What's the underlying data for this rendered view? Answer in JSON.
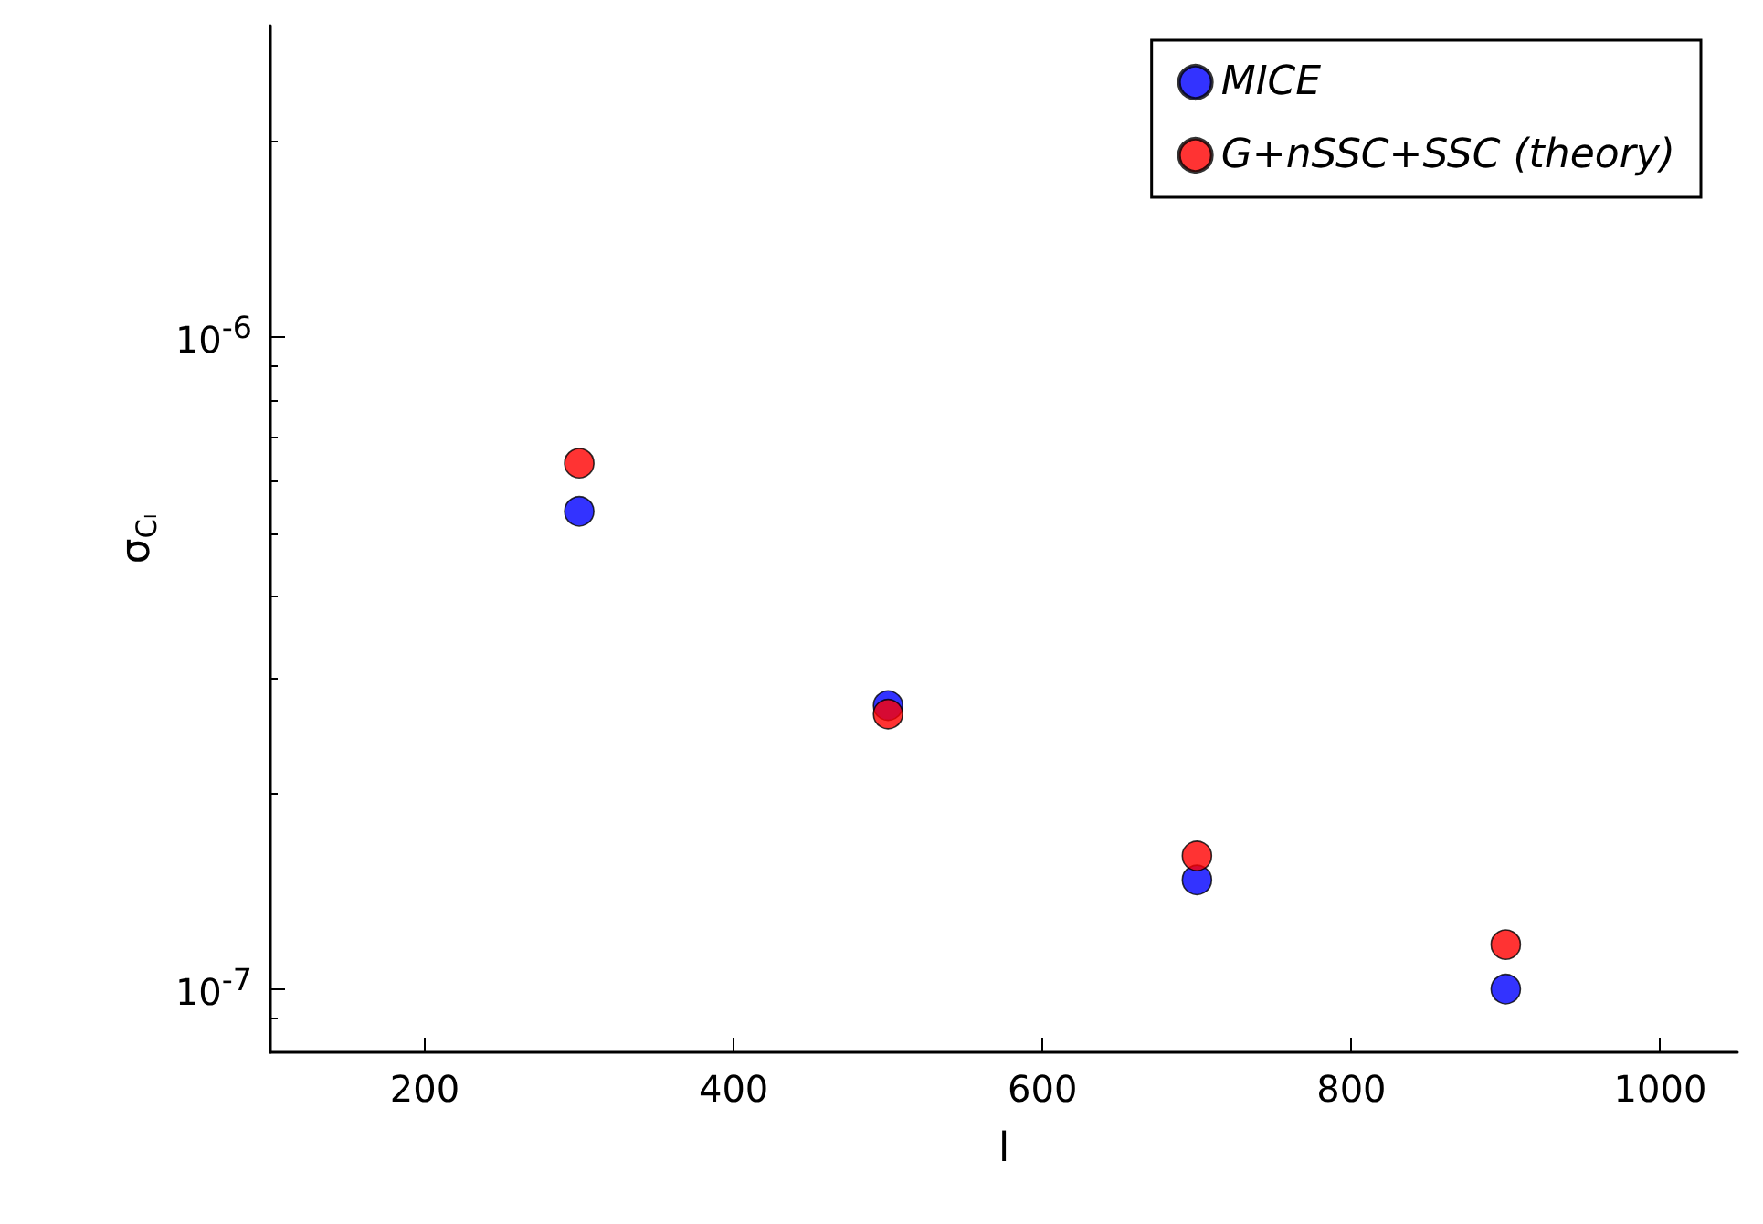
{
  "chart_data": {
    "type": "scatter",
    "xlabel": "l",
    "ylabel": "σ$_{Cₗ}$",
    "x": [
      300,
      500,
      700,
      900
    ],
    "series": [
      {
        "name": "MICE",
        "color": "#0000ff",
        "values": [
          5.4e-07,
          2.72e-07,
          1.47e-07,
          1e-07
        ]
      },
      {
        "name": "G+nSSC+SSC (theory)",
        "color": "#ff0000",
        "values": [
          6.4e-07,
          2.64e-07,
          1.6e-07,
          1.17e-07
        ]
      }
    ],
    "xlim": [
      100,
      1050
    ],
    "xticks": [
      200,
      400,
      600,
      800,
      1000
    ],
    "ylim": [
      8e-08,
      3e-06
    ],
    "yticks": [
      {
        "value": 1e-07,
        "label": "10$^{-7}$"
      },
      {
        "value": 1e-06,
        "label": "10$^{-6}$"
      }
    ],
    "log": "y",
    "grid": false,
    "legend": "top right",
    "marker": "circle"
  }
}
